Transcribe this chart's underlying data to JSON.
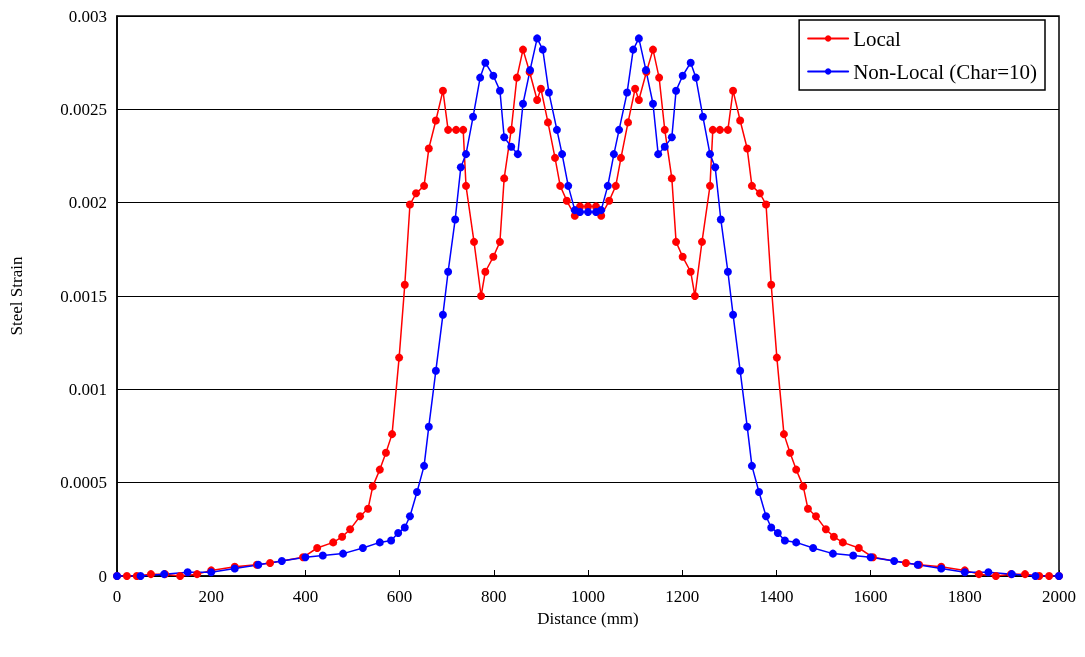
{
  "chart_data": {
    "type": "line",
    "xlabel": "Distance (mm)",
    "ylabel": "Steel Strain",
    "xlim": [
      0,
      2000
    ],
    "xticks": [
      0,
      200,
      400,
      600,
      800,
      1000,
      1200,
      1400,
      1600,
      1800,
      2000
    ],
    "ylim": [
      0,
      0.003
    ],
    "yticks": [
      0,
      0.0005,
      0.001,
      0.0015,
      0.002,
      0.0025,
      0.003
    ],
    "grid": "y",
    "legend": "top right",
    "marker": "circle",
    "line_style": "solid",
    "series": [
      {
        "name": "Local",
        "color": "#ff0000",
        "x": [
          0,
          21,
          42,
          72,
          102,
          134,
          170,
          200,
          250,
          297,
          325,
          395,
          425,
          459,
          478,
          495,
          516,
          533,
          543,
          558,
          571,
          584,
          599,
          611,
          622,
          635,
          652,
          662,
          677,
          692,
          703,
          720,
          735,
          741,
          758,
          773,
          782,
          799,
          813,
          822,
          837,
          849,
          862,
          876,
          892,
          900,
          915,
          930,
          941,
          955,
          972,
          983,
          1000,
          1017,
          1028,
          1045,
          1059,
          1070,
          1085,
          1100,
          1108,
          1124,
          1138,
          1151,
          1163,
          1178,
          1187,
          1201,
          1218,
          1227,
          1242,
          1259,
          1265,
          1280,
          1297,
          1308,
          1323,
          1338,
          1348,
          1365,
          1378,
          1389,
          1401,
          1416,
          1429,
          1442,
          1457,
          1467,
          1484,
          1505,
          1522,
          1541,
          1575,
          1605,
          1675,
          1703,
          1750,
          1800,
          1830,
          1866,
          1898,
          1928,
          1958,
          1979,
          2000
        ],
        "values": [
          0,
          0,
          0,
          1e-05,
          1e-05,
          0,
          1e-05,
          3e-05,
          5e-05,
          6e-05,
          7e-05,
          0.0001,
          0.00015,
          0.00018,
          0.00021,
          0.00025,
          0.00032,
          0.00036,
          0.00048,
          0.00057,
          0.00066,
          0.00076,
          0.00117,
          0.00156,
          0.00199,
          0.00205,
          0.00209,
          0.00229,
          0.00244,
          0.0026,
          0.00239,
          0.00239,
          0.00239,
          0.00209,
          0.00179,
          0.0015,
          0.00163,
          0.00171,
          0.00179,
          0.00213,
          0.00239,
          0.00267,
          0.00282,
          0.0027,
          0.00255,
          0.00261,
          0.00243,
          0.00224,
          0.00209,
          0.00201,
          0.00193,
          0.00198,
          0.00198,
          0.00198,
          0.00193,
          0.00201,
          0.00209,
          0.00224,
          0.00243,
          0.00261,
          0.00255,
          0.0027,
          0.00282,
          0.00267,
          0.00239,
          0.00213,
          0.00179,
          0.00171,
          0.00163,
          0.0015,
          0.00179,
          0.00209,
          0.00239,
          0.00239,
          0.00239,
          0.0026,
          0.00244,
          0.00229,
          0.00209,
          0.00205,
          0.00199,
          0.00156,
          0.00117,
          0.00076,
          0.00066,
          0.00057,
          0.00048,
          0.00036,
          0.00032,
          0.00025,
          0.00021,
          0.00018,
          0.00015,
          0.0001,
          7e-05,
          6e-05,
          5e-05,
          3e-05,
          1e-05,
          0,
          1e-05,
          1e-05,
          0,
          0,
          0
        ]
      },
      {
        "name": "Non-Local (Char=10)",
        "color": "#0000ff",
        "x": [
          0,
          50,
          100,
          150,
          200,
          250,
          300,
          350,
          400,
          437,
          480,
          522,
          558,
          582,
          597,
          611,
          622,
          637,
          652,
          662,
          677,
          692,
          703,
          718,
          730,
          741,
          756,
          771,
          782,
          799,
          813,
          822,
          837,
          851,
          862,
          877,
          892,
          904,
          917,
          934,
          945,
          958,
          972,
          983,
          1000,
          1017,
          1028,
          1042,
          1055,
          1066,
          1083,
          1096,
          1108,
          1123,
          1138,
          1149,
          1163,
          1178,
          1187,
          1201,
          1218,
          1229,
          1244,
          1259,
          1270,
          1282,
          1297,
          1308,
          1323,
          1338,
          1348,
          1363,
          1378,
          1389,
          1403,
          1418,
          1442,
          1478,
          1520,
          1563,
          1600,
          1650,
          1700,
          1750,
          1800,
          1850,
          1900,
          1950,
          2000
        ],
        "values": [
          0,
          0,
          1e-05,
          2e-05,
          2e-05,
          4e-05,
          6e-05,
          8e-05,
          0.0001,
          0.00011,
          0.00012,
          0.00015,
          0.00018,
          0.00019,
          0.00023,
          0.00026,
          0.00032,
          0.00045,
          0.00059,
          0.0008,
          0.0011,
          0.0014,
          0.00163,
          0.00191,
          0.00219,
          0.00226,
          0.00246,
          0.00267,
          0.00275,
          0.00268,
          0.0026,
          0.00235,
          0.0023,
          0.00226,
          0.00253,
          0.00271,
          0.00288,
          0.00282,
          0.00259,
          0.00239,
          0.00226,
          0.00209,
          0.00196,
          0.00195,
          0.00195,
          0.00195,
          0.00196,
          0.00209,
          0.00226,
          0.00239,
          0.00259,
          0.00282,
          0.00288,
          0.00271,
          0.00253,
          0.00226,
          0.0023,
          0.00235,
          0.0026,
          0.00268,
          0.00275,
          0.00267,
          0.00246,
          0.00226,
          0.00219,
          0.00191,
          0.00163,
          0.0014,
          0.0011,
          0.0008,
          0.00059,
          0.00045,
          0.00032,
          0.00026,
          0.00023,
          0.00019,
          0.00018,
          0.00015,
          0.00012,
          0.00011,
          0.0001,
          8e-05,
          6e-05,
          4e-05,
          2e-05,
          2e-05,
          1e-05,
          0,
          0
        ]
      }
    ]
  }
}
